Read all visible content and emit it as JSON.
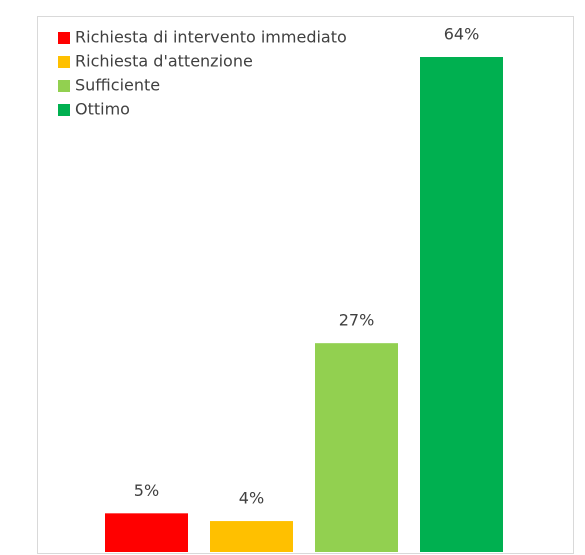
{
  "chart_data": {
    "type": "bar",
    "series": [
      {
        "name": "Richiesta di intervento immediato",
        "color": "#ff0000",
        "values": [
          5
        ],
        "value_labels": [
          "5%"
        ]
      },
      {
        "name": "Richiesta d'attenzione",
        "color": "#ffc000",
        "values": [
          4
        ],
        "value_labels": [
          "4%"
        ]
      },
      {
        "name": "Sufficiente",
        "color": "#92d050",
        "values": [
          27
        ],
        "value_labels": [
          "27%"
        ]
      },
      {
        "name": "Ottimo",
        "color": "#00b050",
        "values": [
          64
        ],
        "value_labels": [
          "64%"
        ]
      }
    ],
    "legend": "top-left"
  }
}
